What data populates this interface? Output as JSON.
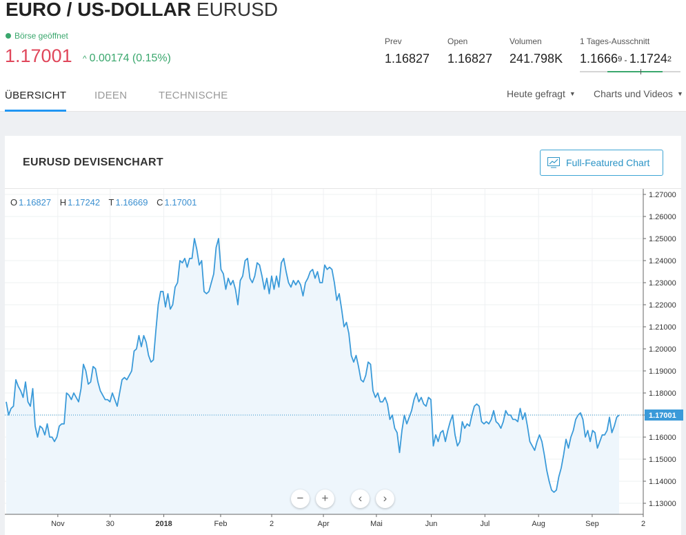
{
  "header": {
    "title_main": "EURO / US-DOLLAR",
    "title_symbol": "EURUSD",
    "status": "Börse geöffnet",
    "price": "1.17001",
    "change": "0.00174 (0.15%)",
    "change_arrow": "^",
    "stats": {
      "prev_label": "Prev",
      "prev_value": "1.16827",
      "open_label": "Open",
      "open_value": "1.16827",
      "volume_label": "Volumen",
      "volume_value": "241.798K",
      "range_label": "1 Tages-Ausschnitt",
      "range_low": "1.1666",
      "range_low_sub": "9",
      "range_sep": " - ",
      "range_high": "1.1724",
      "range_high_sub": "2",
      "range_position": 0.6
    }
  },
  "tabs": [
    {
      "label": "ÜBERSICHT",
      "active": true
    },
    {
      "label": "IDEEN",
      "active": false
    },
    {
      "label": "TECHNISCHE",
      "active": false
    }
  ],
  "dropdowns": {
    "asked": "Heute gefragt",
    "charts": "Charts und Videos"
  },
  "card": {
    "title": "EURUSD DEVISENCHART",
    "button": "Full-Featured Chart"
  },
  "ohlc": {
    "o_label": "O",
    "o_value": "1.16827",
    "h_label": "H",
    "h_value": "1.17242",
    "t_label": "T",
    "t_value": "1.16669",
    "c_label": "C",
    "c_value": "1.17001"
  },
  "nav": {
    "zoom_out": "−",
    "zoom_in": "+",
    "prev": "‹",
    "next": "›"
  },
  "colors": {
    "line": "#3a9ad9",
    "area": "#eef6fc",
    "price_red": "#e0475b",
    "up_green": "#3aa76d",
    "accent": "#2196f3"
  },
  "chart_data": {
    "type": "area",
    "ylim": [
      1.125,
      1.2725
    ],
    "y_ticks": [
      "1.27000",
      "1.26000",
      "1.25000",
      "1.24000",
      "1.23000",
      "1.22000",
      "1.21000",
      "1.20000",
      "1.19000",
      "1.18000",
      "1.17000",
      "1.16000",
      "1.15000",
      "1.14000",
      "1.13000"
    ],
    "y_tick_values": [
      1.27,
      1.26,
      1.25,
      1.24,
      1.23,
      1.22,
      1.21,
      1.2,
      1.19,
      1.18,
      1.17,
      1.16,
      1.15,
      1.14,
      1.13
    ],
    "x_ticks": [
      {
        "label": "Nov",
        "t": 0.083,
        "bold": false
      },
      {
        "label": "30",
        "t": 0.165,
        "bold": false
      },
      {
        "label": "2018",
        "t": 0.249,
        "bold": true
      },
      {
        "label": "Feb",
        "t": 0.338,
        "bold": false
      },
      {
        "label": "2",
        "t": 0.418,
        "bold": false
      },
      {
        "label": "Apr",
        "t": 0.499,
        "bold": false
      },
      {
        "label": "Mai",
        "t": 0.582,
        "bold": false
      },
      {
        "label": "Jun",
        "t": 0.668,
        "bold": false
      },
      {
        "label": "Jul",
        "t": 0.752,
        "bold": false
      },
      {
        "label": "Aug",
        "t": 0.836,
        "bold": false
      },
      {
        "label": "Sep",
        "t": 0.92,
        "bold": false
      },
      {
        "label": "2",
        "t": 1.0,
        "bold": false
      }
    ],
    "last_value": 1.17001,
    "last_label": "1.17001",
    "series": [
      {
        "values": [
          1.176,
          1.17,
          1.173,
          1.174,
          1.186,
          1.183,
          1.181,
          1.178,
          1.185,
          1.176,
          1.174,
          1.182,
          1.165,
          1.16,
          1.165,
          1.164,
          1.161,
          1.166,
          1.16,
          1.16,
          1.158,
          1.16,
          1.165,
          1.166,
          1.166,
          1.18,
          1.179,
          1.177,
          1.18,
          1.178,
          1.176,
          1.182,
          1.193,
          1.19,
          1.184,
          1.185,
          1.192,
          1.191,
          1.185,
          1.181,
          1.179,
          1.177,
          1.177,
          1.176,
          1.18,
          1.177,
          1.174,
          1.18,
          1.186,
          1.187,
          1.186,
          1.188,
          1.19,
          1.199,
          1.2,
          1.206,
          1.201,
          1.206,
          1.203,
          1.197,
          1.194,
          1.195,
          1.208,
          1.22,
          1.226,
          1.226,
          1.219,
          1.225,
          1.218,
          1.22,
          1.228,
          1.23,
          1.24,
          1.239,
          1.241,
          1.237,
          1.241,
          1.241,
          1.25,
          1.245,
          1.238,
          1.24,
          1.226,
          1.225,
          1.226,
          1.23,
          1.234,
          1.246,
          1.25,
          1.236,
          1.234,
          1.227,
          1.232,
          1.229,
          1.231,
          1.227,
          1.22,
          1.231,
          1.233,
          1.24,
          1.241,
          1.232,
          1.23,
          1.233,
          1.239,
          1.238,
          1.233,
          1.227,
          1.232,
          1.225,
          1.233,
          1.227,
          1.233,
          1.228,
          1.239,
          1.241,
          1.235,
          1.23,
          1.228,
          1.231,
          1.229,
          1.231,
          1.229,
          1.224,
          1.23,
          1.232,
          1.235,
          1.236,
          1.232,
          1.235,
          1.23,
          1.23,
          1.238,
          1.236,
          1.237,
          1.236,
          1.23,
          1.222,
          1.225,
          1.218,
          1.21,
          1.212,
          1.207,
          1.197,
          1.194,
          1.197,
          1.192,
          1.186,
          1.185,
          1.188,
          1.194,
          1.193,
          1.181,
          1.178,
          1.18,
          1.176,
          1.176,
          1.178,
          1.175,
          1.168,
          1.17,
          1.164,
          1.162,
          1.153,
          1.163,
          1.17,
          1.166,
          1.169,
          1.172,
          1.177,
          1.18,
          1.176,
          1.178,
          1.175,
          1.174,
          1.178,
          1.177,
          1.156,
          1.161,
          1.158,
          1.162,
          1.163,
          1.158,
          1.163,
          1.167,
          1.17,
          1.161,
          1.156,
          1.158,
          1.167,
          1.164,
          1.166,
          1.165,
          1.17,
          1.174,
          1.175,
          1.174,
          1.167,
          1.166,
          1.167,
          1.166,
          1.168,
          1.172,
          1.167,
          1.166,
          1.164,
          1.167,
          1.172,
          1.17,
          1.17,
          1.168,
          1.168,
          1.167,
          1.173,
          1.168,
          1.171,
          1.165,
          1.158,
          1.156,
          1.154,
          1.158,
          1.161,
          1.158,
          1.152,
          1.145,
          1.14,
          1.136,
          1.135,
          1.136,
          1.142,
          1.146,
          1.152,
          1.159,
          1.155,
          1.16,
          1.163,
          1.168,
          1.17,
          1.171,
          1.168,
          1.16,
          1.163,
          1.158,
          1.163,
          1.162,
          1.155,
          1.158,
          1.161,
          1.161,
          1.163,
          1.169,
          1.162,
          1.165,
          1.169,
          1.17
        ]
      }
    ]
  }
}
